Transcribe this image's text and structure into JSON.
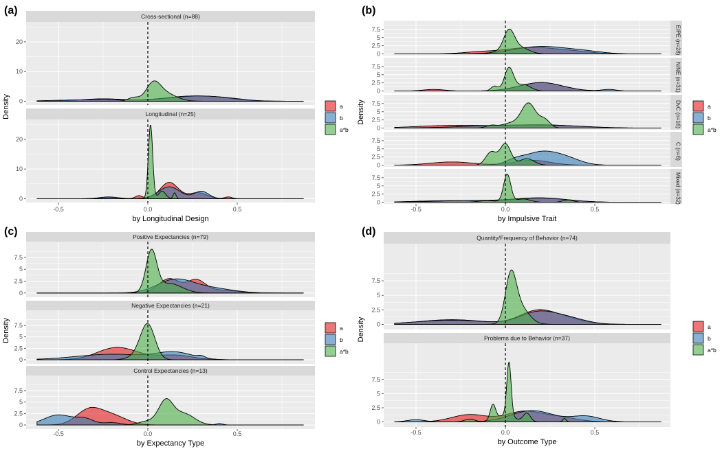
{
  "chart_data": [
    {
      "type": "area",
      "panel_letter": "(a)",
      "xlabel": "by Longitudinal Design",
      "ylabel": "Density",
      "xlim": [
        -0.68,
        0.94
      ],
      "x_ticks": [
        -0.5,
        0.0,
        0.5
      ],
      "x_tick_labels": [
        "-0.5",
        "0.0",
        "0.5"
      ],
      "reference_line_x": 0,
      "legend": {
        "placement": "right",
        "entries": [
          "a",
          "b",
          "a*b"
        ]
      },
      "facets": [
        {
          "label": "Cross-sectional (n=88)",
          "ylim": [
            -1.3,
            26.7
          ],
          "y_ticks": [
            0,
            10,
            20
          ],
          "series": {
            "a": [
              [
                -0.25,
                0.12,
                0.8
              ],
              [
                0.25,
                0.15,
                1.5
              ],
              [
                0.4,
                0.1,
                0.5
              ]
            ],
            "b": [
              [
                -0.3,
                0.2,
                0.5
              ],
              [
                0.25,
                0.15,
                1.7
              ],
              [
                0.45,
                0.1,
                0.5
              ]
            ],
            "ab": [
              [
                0.03,
                0.04,
                5.5
              ],
              [
                0.1,
                0.06,
                2.5
              ],
              [
                -0.08,
                0.03,
                1.2
              ]
            ]
          }
        },
        {
          "label": "Longitudinal (n=25)",
          "ylim": [
            -1.3,
            26.7
          ],
          "y_ticks": [
            0,
            10,
            20
          ],
          "series": {
            "a": [
              [
                0.12,
                0.05,
                5.5
              ],
              [
                0.28,
                0.05,
                2
              ],
              [
                0.45,
                0.02,
                0.6
              ],
              [
                -0.05,
                0.02,
                1
              ],
              [
                -0.2,
                0.05,
                0.4
              ]
            ],
            "b": [
              [
                0.12,
                0.06,
                4
              ],
              [
                0.3,
                0.04,
                2.5
              ],
              [
                -0.22,
                0.05,
                0.6
              ]
            ],
            "ab": [
              [
                0.015,
                0.012,
                25
              ],
              [
                0.08,
                0.02,
                2.5
              ],
              [
                0.15,
                0.008,
                2
              ]
            ]
          }
        }
      ]
    },
    {
      "type": "area",
      "panel_letter": "(b)",
      "xlabel": "by Impulsive Trait",
      "ylabel": "Density",
      "xlim": [
        -0.75,
        0.92
      ],
      "x_ticks": [
        -0.5,
        0.0,
        0.5
      ],
      "x_tick_labels": [
        "-0.5",
        "0.0",
        "0.5"
      ],
      "reference_line_x": 0,
      "legend": {
        "placement": "right",
        "entries": [
          "a",
          "b",
          "a*b"
        ]
      },
      "facets": [
        {
          "label": "E/PE (n=28)",
          "ylim": [
            -0.5,
            10.2
          ],
          "y_ticks": [
            0,
            2.5,
            5,
            7.5
          ],
          "series": {
            "a": [
              [
                -0.15,
                0.1,
                0.5
              ],
              [
                0.15,
                0.15,
                2
              ],
              [
                0.4,
                0.1,
                0.5
              ]
            ],
            "b": [
              [
                0.2,
                0.15,
                2.3
              ],
              [
                0.45,
                0.1,
                0.6
              ]
            ],
            "ab": [
              [
                0.02,
                0.03,
                6.5
              ],
              [
                0.08,
                0.05,
                2
              ],
              [
                -0.05,
                0.04,
                0.6
              ]
            ]
          }
        },
        {
          "label": "N/NE (n=31)",
          "ylim": [
            -0.5,
            10.2
          ],
          "y_ticks": [
            0,
            2.5,
            5,
            7.5
          ],
          "series": {
            "a": [
              [
                -0.4,
                0.06,
                0.5
              ],
              [
                0.2,
                0.12,
                2.6
              ]
            ],
            "b": [
              [
                0.2,
                0.12,
                2.6
              ],
              [
                0.58,
                0.04,
                0.5
              ]
            ],
            "ab": [
              [
                0.02,
                0.025,
                7
              ],
              [
                -0.06,
                0.02,
                1.5
              ],
              [
                0.1,
                0.04,
                2
              ]
            ]
          }
        },
        {
          "label": "DvC (n=16)",
          "ylim": [
            -0.5,
            10.2
          ],
          "y_ticks": [
            0,
            2.5,
            5,
            7.5
          ],
          "series": {
            "a": [
              [
                -0.3,
                0.2,
                0.8
              ],
              [
                0.2,
                0.2,
                1
              ]
            ],
            "b": [
              [
                -0.1,
                0.2,
                0.6
              ],
              [
                0.25,
                0.2,
                0.8
              ]
            ],
            "ab": [
              [
                0.13,
                0.04,
                7.5
              ],
              [
                0.22,
                0.03,
                2.5
              ],
              [
                -0.08,
                0.03,
                0.8
              ],
              [
                0.03,
                0.05,
                1.5
              ]
            ]
          }
        },
        {
          "label": "C (n=6)",
          "ylim": [
            -0.5,
            10.2
          ],
          "y_ticks": [
            0,
            2.5,
            5,
            7.5
          ],
          "series": {
            "a": [
              [
                -0.3,
                0.12,
                1
              ],
              [
                0.15,
                0.1,
                1.5
              ]
            ],
            "b": [
              [
                0.2,
                0.1,
                4
              ],
              [
                0.35,
                0.08,
                1.5
              ],
              [
                0.05,
                0.05,
                1
              ]
            ],
            "ab": [
              [
                0.0,
                0.03,
                6.5
              ],
              [
                -0.08,
                0.03,
                4
              ],
              [
                0.12,
                0.04,
                2
              ]
            ]
          }
        },
        {
          "label": "Mixed (n=32)",
          "ylim": [
            -0.5,
            10.2
          ],
          "y_ticks": [
            0,
            2.5,
            5,
            7.5
          ],
          "series": {
            "a": [
              [
                -0.3,
                0.2,
                0.5
              ],
              [
                0.2,
                0.15,
                1.2
              ]
            ],
            "b": [
              [
                -0.2,
                0.2,
                0.5
              ],
              [
                0.2,
                0.15,
                1.3
              ]
            ],
            "ab": [
              [
                0.01,
                0.02,
                8.5
              ],
              [
                0.1,
                0.04,
                1
              ],
              [
                -0.1,
                0.05,
                0.5
              ],
              [
                0.35,
                0.03,
                0.7
              ]
            ]
          }
        }
      ]
    },
    {
      "type": "area",
      "panel_letter": "(c)",
      "xlabel": "by Expectancy Type",
      "ylabel": "Density",
      "xlim": [
        -0.68,
        0.94
      ],
      "x_ticks": [
        -0.5,
        0.0,
        0.5
      ],
      "x_tick_labels": [
        "-0.5",
        "0.0",
        "0.5"
      ],
      "reference_line_x": 0,
      "legend": {
        "placement": "right",
        "entries": [
          "a",
          "b",
          "a*b"
        ]
      },
      "facets": [
        {
          "label": "Positive Expectancies (n=79)",
          "ylim": [
            -0.9,
            10.8
          ],
          "y_ticks": [
            0,
            2.5,
            5,
            7.5
          ],
          "series": {
            "a": [
              [
                0.12,
                0.06,
                3
              ],
              [
                0.27,
                0.05,
                2.5
              ],
              [
                0.4,
                0.1,
                0.6
              ]
            ],
            "b": [
              [
                0.15,
                0.1,
                2.7
              ],
              [
                0.35,
                0.12,
                1
              ]
            ],
            "ab": [
              [
                0.02,
                0.03,
                8.5
              ],
              [
                0.12,
                0.07,
                2
              ]
            ]
          }
        },
        {
          "label": "Negative Expectancies (n=21)",
          "ylim": [
            -0.9,
            10.8
          ],
          "y_ticks": [
            0,
            2.5,
            5,
            7.5
          ],
          "series": {
            "a": [
              [
                -0.2,
                0.1,
                2
              ],
              [
                -0.1,
                0.1,
                1
              ],
              [
                0.15,
                0.1,
                1
              ]
            ],
            "b": [
              [
                -0.2,
                0.2,
                1.2
              ],
              [
                0.15,
                0.1,
                1.5
              ],
              [
                0.3,
                0.02,
                0.4
              ]
            ],
            "ab": [
              [
                0.0,
                0.04,
                7.3
              ],
              [
                -0.05,
                0.05,
                1
              ]
            ]
          }
        },
        {
          "label": "Control Expectancies (n=13)",
          "ylim": [
            -0.9,
            10.8
          ],
          "y_ticks": [
            0,
            2.5,
            5,
            7.5
          ],
          "series": {
            "a": [
              [
                -0.33,
                0.07,
                3.2
              ],
              [
                -0.2,
                0.08,
                2
              ]
            ],
            "b": [
              [
                -0.5,
                0.08,
                2.2
              ],
              [
                -0.35,
                0.05,
                1.2
              ],
              [
                -0.2,
                0.05,
                0.5
              ],
              [
                0.4,
                0.02,
                0.3
              ]
            ],
            "ab": [
              [
                0.1,
                0.04,
                5
              ],
              [
                0.2,
                0.06,
                2.5
              ],
              [
                0.0,
                0.05,
                0.8
              ]
            ]
          }
        }
      ]
    },
    {
      "type": "area",
      "panel_letter": "(d)",
      "xlabel": "by Outcome Type",
      "ylabel": "Density",
      "xlim": [
        -0.75,
        0.92
      ],
      "x_ticks": [
        -0.5,
        0.0,
        0.5
      ],
      "x_tick_labels": [
        "-0.5",
        "0.0",
        "0.5"
      ],
      "reference_line_x": 0,
      "legend": {
        "placement": "right",
        "entries": [
          "a",
          "b",
          "a*b"
        ]
      },
      "facets": [
        {
          "label": "Quantity/Frequency of Behavior (n=74)",
          "ylim": [
            -0.9,
            13.9
          ],
          "y_ticks": [
            0,
            2.5,
            5,
            7.5
          ],
          "series": {
            "a": [
              [
                -0.3,
                0.18,
                0.8
              ],
              [
                0.18,
                0.1,
                2.3
              ],
              [
                0.35,
                0.1,
                0.8
              ]
            ],
            "b": [
              [
                -0.3,
                0.2,
                0.7
              ],
              [
                0.18,
                0.1,
                2
              ],
              [
                0.35,
                0.1,
                1
              ]
            ],
            "ab": [
              [
                0.03,
                0.03,
                7.5
              ],
              [
                0.08,
                0.05,
                3
              ]
            ]
          }
        },
        {
          "label": "Problems due to Behavior (n=37)",
          "ylim": [
            -0.9,
            13.9
          ],
          "y_ticks": [
            0,
            2.5,
            5,
            7.5
          ],
          "series": {
            "a": [
              [
                -0.2,
                0.1,
                1.3
              ],
              [
                0.1,
                0.1,
                1.8
              ],
              [
                0.3,
                0.1,
                0.8
              ]
            ],
            "b": [
              [
                -0.5,
                0.05,
                0.4
              ],
              [
                0.15,
                0.12,
                2
              ],
              [
                0.45,
                0.08,
                1
              ]
            ],
            "ab": [
              [
                0.02,
                0.012,
                9.5
              ],
              [
                -0.07,
                0.015,
                2.7
              ],
              [
                0.0,
                0.05,
                1.2
              ],
              [
                0.12,
                0.02,
                1.5
              ],
              [
                0.33,
                0.01,
                0.6
              ],
              [
                -0.2,
                0.03,
                0.5
              ]
            ]
          }
        }
      ]
    }
  ],
  "series_note": "Each series given as gaussian components [center, spread, peak density] in data units; curves span x from -0.62 to 0.87",
  "data_range": [
    -0.62,
    0.87
  ],
  "colors": {
    "a": "#E41A1C",
    "b": "#377EB8",
    "ab": "#4DAF4A",
    "panel_bg": "#EBEBEB",
    "strip_bg": "#D9D9D9"
  }
}
